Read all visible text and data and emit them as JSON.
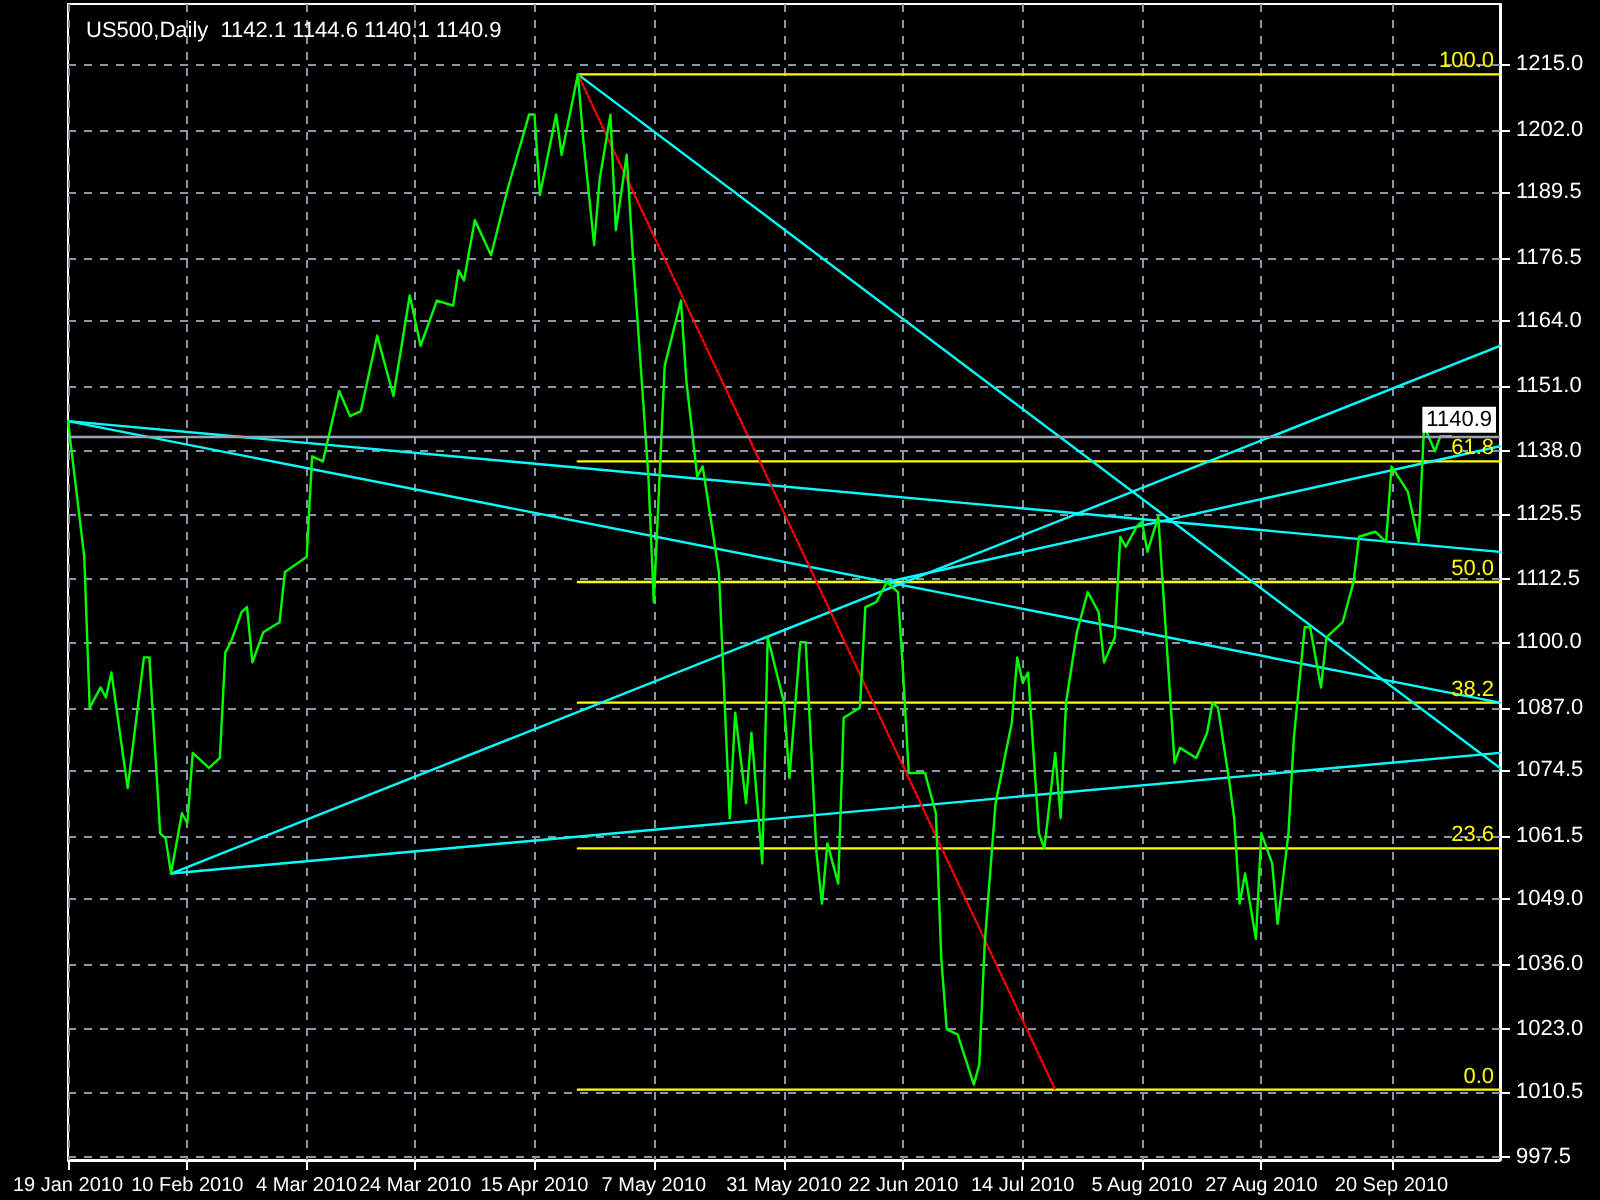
{
  "chart_data": {
    "type": "line",
    "title": "US500,Daily  1142.1 1144.6 1140.1 1140.9",
    "xlim": [
      "2010-01-19",
      "2010-10-10"
    ],
    "xticks": [
      {
        "value": "2010-01-19",
        "label": "19 Jan 2010"
      },
      {
        "value": "2010-02-10",
        "label": "10 Feb 2010"
      },
      {
        "value": "2010-03-04",
        "label": "4 Mar 2010"
      },
      {
        "value": "2010-03-24",
        "label": "24 Mar 2010"
      },
      {
        "value": "2010-04-15",
        "label": "15 Apr 2010"
      },
      {
        "value": "2010-05-07",
        "label": "7 May 2010"
      },
      {
        "value": "2010-05-31",
        "label": "31 May 2010"
      },
      {
        "value": "2010-06-22",
        "label": "22 Jun 2010"
      },
      {
        "value": "2010-07-14",
        "label": "14 Jul 2010"
      },
      {
        "value": "2010-08-05",
        "label": "5 Aug 2010"
      },
      {
        "value": "2010-08-27",
        "label": "27 Aug 2010"
      },
      {
        "value": "2010-09-20",
        "label": "20 Sep 2010"
      }
    ],
    "ylim": [
      997,
      1227
    ],
    "yticks": [
      {
        "value": 997.5,
        "label": "997.5"
      },
      {
        "value": 1010.5,
        "label": "1010.5"
      },
      {
        "value": 1023,
        "label": "1023.0"
      },
      {
        "value": 1036,
        "label": "1036.0"
      },
      {
        "value": 1049,
        "label": "1049.0"
      },
      {
        "value": 1061.5,
        "label": "1061.5"
      },
      {
        "value": 1074.5,
        "label": "1074.5"
      },
      {
        "value": 1087,
        "label": "1087.0"
      },
      {
        "value": 1100,
        "label": "1100.0"
      },
      {
        "value": 1112.5,
        "label": "1112.5"
      },
      {
        "value": 1125.5,
        "label": "1125.5"
      },
      {
        "value": 1138,
        "label": "1138.0"
      },
      {
        "value": 1151,
        "label": "1151.0"
      },
      {
        "value": 1164,
        "label": "1164.0"
      },
      {
        "value": 1176.5,
        "label": "1176.5"
      },
      {
        "value": 1189.5,
        "label": "1189.5"
      },
      {
        "value": 1202,
        "label": "1202.0"
      },
      {
        "value": 1215,
        "label": "1215.0"
      }
    ],
    "grid": true,
    "marker": "none",
    "line_style": "solid",
    "series": [
      {
        "color": "#00ff00",
        "x": [
          "2010-01-19",
          "2010-01-22",
          "2010-01-23",
          "2010-01-25",
          "2010-01-26",
          "2010-01-27",
          "2010-01-30",
          "2010-02-02",
          "2010-02-03",
          "2010-02-05",
          "2010-02-06",
          "2010-02-07",
          "2010-02-09",
          "2010-02-10",
          "2010-02-11",
          "2010-02-14",
          "2010-02-16",
          "2010-02-17",
          "2010-02-18",
          "2010-02-20",
          "2010-02-21",
          "2010-02-22",
          "2010-02-24",
          "2010-02-27",
          "2010-02-28",
          "2010-03-04",
          "2010-03-05",
          "2010-03-07",
          "2010-03-10",
          "2010-03-12",
          "2010-03-14",
          "2010-03-17",
          "2010-03-20",
          "2010-03-23",
          "2010-03-25",
          "2010-03-28",
          "2010-03-31",
          "2010-04-01",
          "2010-04-02",
          "2010-04-04",
          "2010-04-07",
          "2010-04-10",
          "2010-04-14",
          "2010-04-15",
          "2010-04-16",
          "2010-04-19",
          "2010-04-20",
          "2010-04-23",
          "2010-04-24",
          "2010-04-26",
          "2010-04-27",
          "2010-04-29",
          "2010-04-30",
          "2010-05-02",
          "2010-05-03",
          "2010-05-04",
          "2010-05-06",
          "2010-05-07",
          "2010-05-09",
          "2010-05-12",
          "2010-05-13",
          "2010-05-15",
          "2010-05-16",
          "2010-05-19",
          "2010-05-21",
          "2010-05-22",
          "2010-05-24",
          "2010-05-25",
          "2010-05-27",
          "2010-05-28",
          "2010-05-31",
          "2010-06-01",
          "2010-06-03",
          "2010-06-04",
          "2010-06-06",
          "2010-06-07",
          "2010-06-08",
          "2010-06-10",
          "2010-06-11",
          "2010-06-14",
          "2010-06-15",
          "2010-06-17",
          "2010-06-19",
          "2010-06-21",
          "2010-06-22",
          "2010-06-23",
          "2010-06-26",
          "2010-06-28",
          "2010-06-29",
          "2010-06-30",
          "2010-07-02",
          "2010-07-05",
          "2010-07-06",
          "2010-07-07",
          "2010-07-09",
          "2010-07-12",
          "2010-07-13",
          "2010-07-14",
          "2010-07-15",
          "2010-07-17",
          "2010-07-18",
          "2010-07-20",
          "2010-07-21",
          "2010-07-22",
          "2010-07-24",
          "2010-07-26",
          "2010-07-28",
          "2010-07-29",
          "2010-07-31",
          "2010-08-01",
          "2010-08-02",
          "2010-08-04",
          "2010-08-05",
          "2010-08-06",
          "2010-08-08",
          "2010-08-11",
          "2010-08-12",
          "2010-08-15",
          "2010-08-17",
          "2010-08-18",
          "2010-08-19",
          "2010-08-21",
          "2010-08-22",
          "2010-08-23",
          "2010-08-24",
          "2010-08-26",
          "2010-08-27",
          "2010-08-29",
          "2010-08-30",
          "2010-09-01",
          "2010-09-02",
          "2010-09-04",
          "2010-09-05",
          "2010-09-07",
          "2010-09-08",
          "2010-09-11",
          "2010-09-13",
          "2010-09-14",
          "2010-09-17",
          "2010-09-19",
          "2010-09-20",
          "2010-09-23",
          "2010-09-25",
          "2010-09-26",
          "2010-09-28",
          "2010-09-29",
          "2010-10-01"
        ],
        "values": [
          1144,
          1117,
          1087,
          1091,
          1089,
          1094,
          1071,
          1097,
          1097,
          1062,
          1061,
          1054,
          1066,
          1064,
          1078,
          1075,
          1077,
          1098,
          1100,
          1106,
          1107,
          1096,
          1102,
          1104,
          1114,
          1117,
          1137,
          1136,
          1150,
          1145,
          1146,
          1161,
          1149,
          1169,
          1159,
          1168,
          1167,
          1174,
          1172,
          1184,
          1177,
          1190,
          1205,
          1205,
          1189,
          1205,
          1197,
          1213,
          1200,
          1179,
          1192,
          1205,
          1182,
          1197,
          1179,
          1164,
          1133,
          1108,
          1155,
          1168,
          1152,
          1133,
          1135,
          1114,
          1065,
          1086,
          1068,
          1082,
          1056,
          1101,
          1088,
          1073,
          1100,
          1100,
          1058,
          1048,
          1060,
          1052,
          1085,
          1087,
          1107,
          1108,
          1112,
          1110,
          1093,
          1074,
          1074,
          1066,
          1037,
          1023,
          1022,
          1012,
          1016,
          1040,
          1068,
          1084,
          1097,
          1092,
          1094,
          1062,
          1059,
          1078,
          1065,
          1088,
          1102,
          1110,
          1106,
          1096,
          1101,
          1121,
          1119,
          1123,
          1124,
          1118,
          1125,
          1076,
          1079,
          1077,
          1082,
          1088,
          1087,
          1073,
          1065,
          1048,
          1054,
          1041,
          1062,
          1056,
          1044,
          1062,
          1081,
          1103,
          1103,
          1091,
          1101,
          1104,
          1112,
          1121,
          1122,
          1120,
          1135,
          1130,
          1120,
          1143,
          1138,
          1141,
          1141
        ]
      },
      {
        "color": "#ffff00",
        "x": [
          "2010-04-23",
          "2010-10-10"
        ],
        "values": [
          1213,
          1213
        ]
      },
      {
        "color": "#ffff00",
        "x": [
          "2010-04-23",
          "2010-10-10"
        ],
        "values": [
          1136,
          1136
        ]
      },
      {
        "color": "#ffff00",
        "x": [
          "2010-04-23",
          "2010-10-10"
        ],
        "values": [
          1112,
          1112
        ]
      },
      {
        "color": "#ffff00",
        "x": [
          "2010-04-23",
          "2010-10-10"
        ],
        "values": [
          1088,
          1088
        ]
      },
      {
        "color": "#ffff00",
        "x": [
          "2010-04-23",
          "2010-10-10"
        ],
        "values": [
          1059,
          1059
        ]
      },
      {
        "color": "#ffff00",
        "x": [
          "2010-04-23",
          "2010-10-10"
        ],
        "values": [
          1011,
          1011
        ]
      },
      {
        "color": "#00ffff",
        "x": [
          "2010-04-23",
          "2010-10-10"
        ],
        "values": [
          1213,
          1075
        ]
      },
      {
        "color": "#00ffff",
        "x": [
          "2010-01-19",
          "2010-10-10"
        ],
        "values": [
          1144,
          1118
        ]
      },
      {
        "color": "#00ffff",
        "x": [
          "2010-01-19",
          "2010-10-10"
        ],
        "values": [
          1144,
          1088
        ]
      },
      {
        "color": "#00ffff",
        "x": [
          "2010-02-07",
          "2010-10-10"
        ],
        "values": [
          1054,
          1078
        ]
      },
      {
        "color": "#00ffff",
        "x": [
          "2010-02-07",
          "2010-10-10"
        ],
        "values": [
          1054,
          1159
        ]
      },
      {
        "color": "#00ffff",
        "x": [
          "2010-06-19",
          "2010-10-10"
        ],
        "values": [
          1112,
          1139
        ]
      },
      {
        "color": "#ff0000",
        "line_style": "dotted",
        "x": [
          "2010-04-23",
          "2010-07-20"
        ],
        "values": [
          1213,
          1011
        ]
      }
    ],
    "annotations": [
      {
        "text": "100.0",
        "x": "2010-10-10",
        "y": 1213
      },
      {
        "text": "61.8",
        "x": "2010-10-10",
        "y": 1136
      },
      {
        "text": "50.0",
        "x": "2010-10-10",
        "y": 1112
      },
      {
        "text": "38.2",
        "x": "2010-10-10",
        "y": 1088
      },
      {
        "text": "23.6",
        "x": "2010-10-10",
        "y": 1059
      },
      {
        "text": "0.0",
        "x": "2010-10-10",
        "y": 1011
      }
    ],
    "ref_lines": [
      {
        "axis": "y",
        "value": 1140.9,
        "label": "1140.9",
        "color": "#9aa4b4"
      }
    ]
  }
}
